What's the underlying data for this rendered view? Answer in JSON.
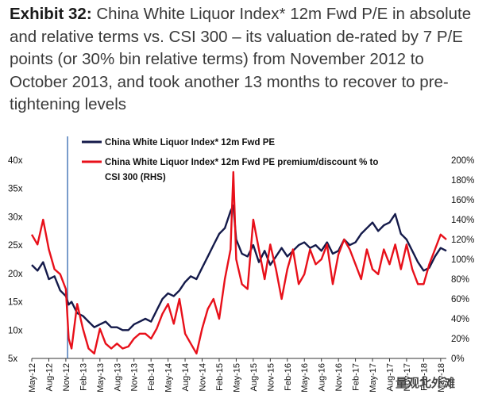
{
  "header": {
    "exhibit_label": "Exhibit 32:",
    "title_text": "China White Liquor Index* 12m Fwd P/E in absolute and relative terms vs. CSI 300 – its valuation de-rated by 7 P/E points (or 30% bin relative terms) from November 2012 to October 2013, and took another 13 months to recover to pre-tightening levels"
  },
  "watermark": "量观北外滩",
  "colors": {
    "pe_line": "#141a4a",
    "premium_line": "#e8101a",
    "vline": "#1f5aa8",
    "axis": "#333333"
  },
  "chart_data": {
    "type": "line",
    "legend": [
      "China White Liquor Index* 12m Fwd PE",
      "China White Liquor Index* 12m Fwd PE premium/discount % to",
      "CSI 300 (RHS)"
    ],
    "left_axis": {
      "ylim": [
        5,
        40
      ],
      "ticks": [
        "40x",
        "35x",
        "30x",
        "25x",
        "20x",
        "15x",
        "10x",
        "5x"
      ]
    },
    "right_axis": {
      "ylim": [
        0,
        200
      ],
      "ticks": [
        "200%",
        "180%",
        "160%",
        "140%",
        "120%",
        "100%",
        "80%",
        "60%",
        "40%",
        "20%",
        "0%"
      ]
    },
    "x_tick_labels": [
      "May-12",
      "Aug-12",
      "Nov-12",
      "Feb-13",
      "May-13",
      "Aug-13",
      "Nov-13",
      "Feb-14",
      "May-14",
      "Aug-14",
      "Nov-14",
      "Feb-15",
      "May-15",
      "Aug-15",
      "Nov-15",
      "Feb-16",
      "May-16",
      "Aug-16",
      "Nov-16",
      "Feb-17",
      "May-17",
      "Aug-17",
      "Nov-17",
      "Feb-18",
      "May-18"
    ],
    "vertical_marker_month": 6.3,
    "month_count": 74,
    "series": [
      {
        "name": "China White Liquor Index* 12m Fwd PE",
        "axis": "left",
        "points": [
          [
            0,
            21.5
          ],
          [
            1,
            20.5
          ],
          [
            2,
            22
          ],
          [
            3,
            19
          ],
          [
            4,
            19.5
          ],
          [
            5,
            17
          ],
          [
            6,
            16
          ],
          [
            6.5,
            14.5
          ],
          [
            7,
            15
          ],
          [
            8,
            13
          ],
          [
            9,
            12.5
          ],
          [
            10,
            11.5
          ],
          [
            11,
            10.5
          ],
          [
            12,
            11
          ],
          [
            13,
            11.5
          ],
          [
            14,
            10.5
          ],
          [
            15,
            10.5
          ],
          [
            16,
            10
          ],
          [
            17,
            10
          ],
          [
            18,
            11
          ],
          [
            19,
            11.5
          ],
          [
            20,
            12
          ],
          [
            21,
            11.5
          ],
          [
            22,
            13.5
          ],
          [
            23,
            15.5
          ],
          [
            24,
            16.5
          ],
          [
            25,
            16
          ],
          [
            26,
            17
          ],
          [
            27,
            18.5
          ],
          [
            28,
            19.5
          ],
          [
            29,
            19
          ],
          [
            30,
            21
          ],
          [
            31,
            23
          ],
          [
            32,
            25
          ],
          [
            33,
            27
          ],
          [
            34,
            28
          ],
          [
            35,
            31
          ],
          [
            35.5,
            32
          ],
          [
            36,
            26
          ],
          [
            37,
            23.5
          ],
          [
            38,
            23
          ],
          [
            39,
            25
          ],
          [
            40,
            22
          ],
          [
            41,
            24
          ],
          [
            42,
            21.5
          ],
          [
            43,
            23
          ],
          [
            44,
            24.5
          ],
          [
            45,
            23
          ],
          [
            46,
            24
          ],
          [
            47,
            25
          ],
          [
            48,
            25.5
          ],
          [
            49,
            24.5
          ],
          [
            50,
            25
          ],
          [
            51,
            24
          ],
          [
            52,
            25.5
          ],
          [
            53,
            23.5
          ],
          [
            54,
            24
          ],
          [
            55,
            26
          ],
          [
            56,
            25
          ],
          [
            57,
            25.5
          ],
          [
            58,
            27
          ],
          [
            59,
            28
          ],
          [
            60,
            29
          ],
          [
            61,
            27.5
          ],
          [
            62,
            28.5
          ],
          [
            63,
            29
          ],
          [
            64,
            30.5
          ],
          [
            65,
            27
          ],
          [
            66,
            26
          ],
          [
            67,
            24
          ],
          [
            68,
            22
          ],
          [
            69,
            20.5
          ],
          [
            70,
            21
          ],
          [
            71,
            23
          ],
          [
            72,
            24.5
          ],
          [
            73,
            24
          ]
        ]
      },
      {
        "name": "China White Liquor Index* 12m Fwd PE premium/discount % to CSI 300 (RHS)",
        "axis": "right",
        "points": [
          [
            0,
            125
          ],
          [
            1,
            115
          ],
          [
            2,
            140
          ],
          [
            3,
            110
          ],
          [
            4,
            90
          ],
          [
            5,
            85
          ],
          [
            6,
            70
          ],
          [
            6.5,
            20
          ],
          [
            7,
            10
          ],
          [
            8,
            55
          ],
          [
            9,
            30
          ],
          [
            10,
            10
          ],
          [
            11,
            5
          ],
          [
            12,
            30
          ],
          [
            13,
            15
          ],
          [
            14,
            10
          ],
          [
            15,
            15
          ],
          [
            16,
            10
          ],
          [
            17,
            12
          ],
          [
            18,
            20
          ],
          [
            19,
            25
          ],
          [
            20,
            25
          ],
          [
            21,
            20
          ],
          [
            22,
            30
          ],
          [
            23,
            45
          ],
          [
            24,
            55
          ],
          [
            25,
            35
          ],
          [
            26,
            60
          ],
          [
            27,
            25
          ],
          [
            28,
            15
          ],
          [
            29,
            5
          ],
          [
            30,
            30
          ],
          [
            31,
            50
          ],
          [
            32,
            60
          ],
          [
            33,
            40
          ],
          [
            34,
            80
          ],
          [
            35,
            110
          ],
          [
            35.5,
            188
          ],
          [
            36,
            100
          ],
          [
            37,
            75
          ],
          [
            38,
            70
          ],
          [
            39,
            140
          ],
          [
            40,
            110
          ],
          [
            41,
            80
          ],
          [
            42,
            115
          ],
          [
            43,
            90
          ],
          [
            44,
            60
          ],
          [
            45,
            90
          ],
          [
            46,
            110
          ],
          [
            47,
            75
          ],
          [
            48,
            85
          ],
          [
            49,
            110
          ],
          [
            50,
            95
          ],
          [
            51,
            100
          ],
          [
            52,
            115
          ],
          [
            53,
            75
          ],
          [
            54,
            105
          ],
          [
            55,
            120
          ],
          [
            56,
            110
          ],
          [
            57,
            95
          ],
          [
            58,
            80
          ],
          [
            59,
            110
          ],
          [
            60,
            90
          ],
          [
            61,
            85
          ],
          [
            62,
            110
          ],
          [
            63,
            95
          ],
          [
            64,
            115
          ],
          [
            65,
            90
          ],
          [
            66,
            115
          ],
          [
            67,
            90
          ],
          [
            68,
            75
          ],
          [
            69,
            75
          ],
          [
            70,
            95
          ],
          [
            71,
            110
          ],
          [
            72,
            125
          ],
          [
            73,
            120
          ]
        ]
      }
    ]
  }
}
